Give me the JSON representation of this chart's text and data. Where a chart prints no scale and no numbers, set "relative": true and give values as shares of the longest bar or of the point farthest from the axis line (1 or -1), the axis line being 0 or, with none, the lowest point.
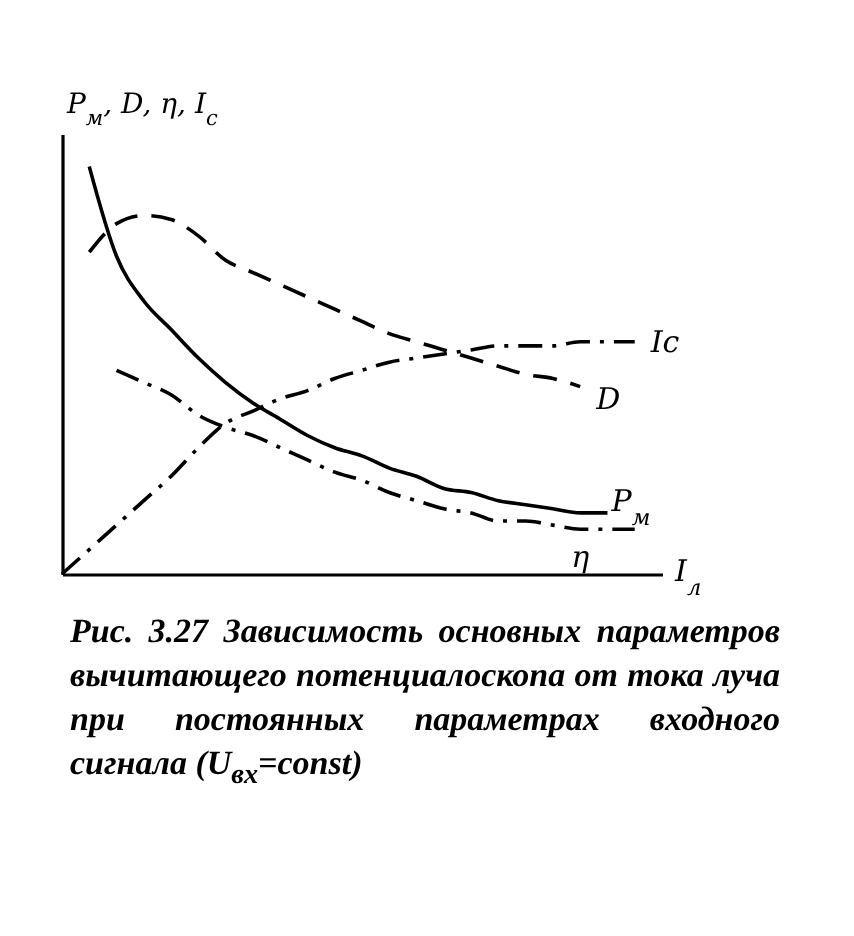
{
  "chart_data": {
    "type": "line",
    "relative": true,
    "xlabel": "I$_{л}$",
    "ylabel": "P$_{м}$, D, η, I$_{c}$",
    "categories": [
      null,
      null,
      null,
      null,
      null,
      null,
      null,
      null,
      null,
      null,
      null,
      null,
      null,
      null,
      null,
      null,
      null,
      null,
      null,
      null,
      null,
      null
    ],
    "series": [
      {
        "name": "P$_{м}$",
        "color": "#000000",
        "line_style": "solid",
        "values": [
          null,
          1.0,
          0.78,
          0.67,
          0.6,
          0.53,
          0.47,
          0.42,
          0.38,
          0.34,
          0.31,
          0.29,
          0.26,
          0.24,
          0.21,
          0.2,
          0.18,
          0.17,
          0.16,
          0.15,
          0.15,
          null
        ]
      },
      {
        "name": "D",
        "color": "#000000",
        "line_style": "dashed",
        "values": [
          null,
          0.79,
          0.86,
          0.88,
          0.87,
          0.83,
          0.77,
          0.74,
          0.71,
          0.68,
          0.65,
          0.62,
          0.59,
          0.57,
          0.55,
          0.53,
          0.51,
          0.49,
          0.48,
          0.46,
          null,
          null
        ]
      },
      {
        "name": "Ic",
        "color": "#000000",
        "line_style": "dashdot",
        "values": [
          0.0,
          0.06,
          0.12,
          0.18,
          0.24,
          0.31,
          0.37,
          0.4,
          0.43,
          0.45,
          0.48,
          0.5,
          0.52,
          0.53,
          0.54,
          0.55,
          0.56,
          0.56,
          0.56,
          0.57,
          0.57,
          0.57
        ]
      },
      {
        "name": "η",
        "color": "#000000",
        "line_style": "dashdot",
        "values": [
          null,
          null,
          0.5,
          0.47,
          0.44,
          0.39,
          0.36,
          0.34,
          0.31,
          0.28,
          0.25,
          0.23,
          0.2,
          0.18,
          0.16,
          0.15,
          0.13,
          0.13,
          0.12,
          0.11,
          0.11,
          0.11
        ]
      }
    ],
    "grid": false,
    "marker": "none",
    "annotations": [
      "Рис. 3.27 Зависимость основных параметров вычитающего потенциалоскопа от тока луча при постоянных параметрах входного сигнала (U$_{вх}$=const)"
    ]
  }
}
